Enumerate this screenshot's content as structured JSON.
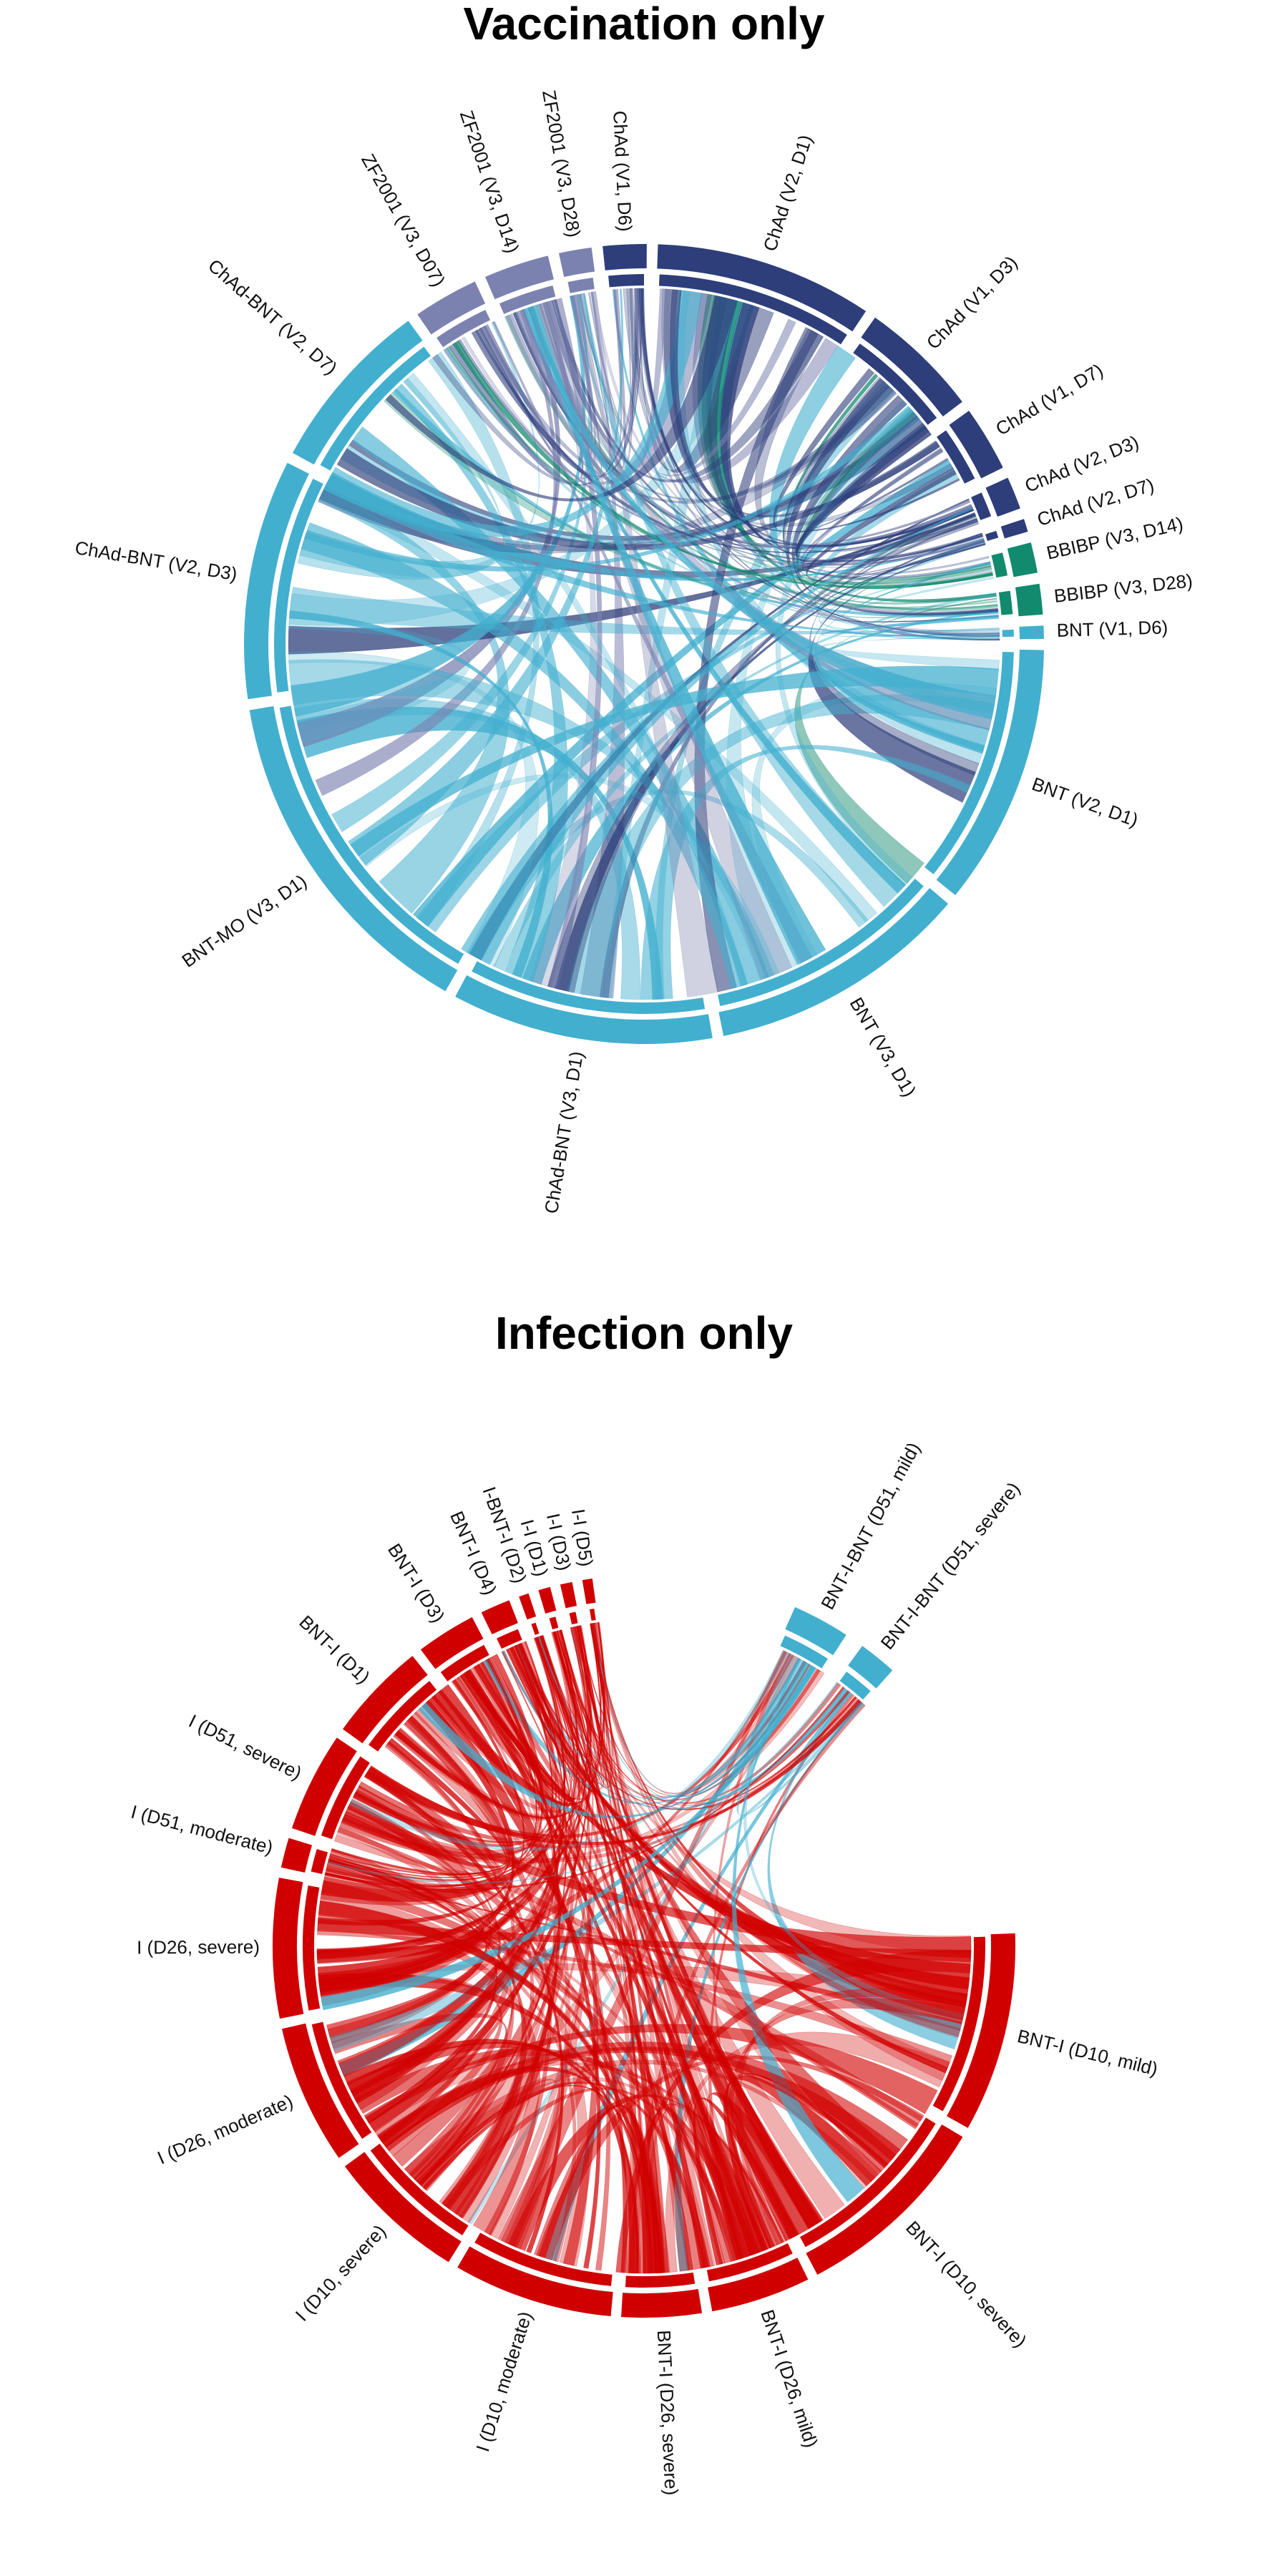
{
  "panels": [
    {
      "id": "vaccination",
      "title": "Vaccination only",
      "sectors": [
        {
          "label": "ChAd (V2, D1)",
          "color": "#2d3e7a",
          "size": 10
        },
        {
          "label": "ChAd (V1, D3)",
          "color": "#2d3e7a",
          "size": 5.5
        },
        {
          "label": "ChAd (V1, D7)",
          "color": "#2d3e7a",
          "size": 3
        },
        {
          "label": "ChAd (V2, D3)",
          "color": "#2d3e7a",
          "size": 1.5
        },
        {
          "label": "ChAd (V2, D7)",
          "color": "#2d3e7a",
          "size": 0.6
        },
        {
          "label": "BBIBP (V3, D14)",
          "color": "#118a6e",
          "size": 1.4
        },
        {
          "label": "BBIBP (V3, D28)",
          "color": "#118a6e",
          "size": 1.4
        },
        {
          "label": "BNT (V1, D6)",
          "color": "#42afcf",
          "size": 0.6
        },
        {
          "label": "BNT (V2, D1)",
          "color": "#42afcf",
          "size": 12
        },
        {
          "label": "BNT (V3, D1)",
          "color": "#42afcf",
          "size": 12
        },
        {
          "label": "ChAd-BNT (V3, D1)",
          "color": "#42afcf",
          "size": 12
        },
        {
          "label": "BNT-MO (V3, D1)",
          "color": "#42afcf",
          "size": 16
        },
        {
          "label": "ChAd-BNT (V2, D3)",
          "color": "#42afcf",
          "size": 11
        },
        {
          "label": "ChAd-BNT (V2, D7)",
          "color": "#42afcf",
          "size": 8
        },
        {
          "label": "ZF2001 (V3, D07)",
          "color": "#7c82b0",
          "size": 3
        },
        {
          "label": "ZF2001 (V3, D14)",
          "color": "#7c82b0",
          "size": 3
        },
        {
          "label": "ZF2001 (V3, D28)",
          "color": "#7c82b0",
          "size": 1.5
        },
        {
          "label": "ChAd (V1, D6)",
          "color": "#2d3e7a",
          "size": 2
        }
      ]
    },
    {
      "id": "infection",
      "title": "Infection only",
      "sectors": [
        {
          "label": "BNT-I-BNT (D51, mild)",
          "color": "#42afcf",
          "size": 1.5
        },
        {
          "label": "BNT-I-BNT (D51, severe)",
          "color": "#42afcf",
          "size": 1
        },
        {
          "label": "BNT-I (D10, mild)",
          "color": "#d10000",
          "size": 10
        },
        {
          "label": "BNT-I (D10, severe)",
          "color": "#d10000",
          "size": 10
        },
        {
          "label": "BNT-I (D26, mild)",
          "color": "#d10000",
          "size": 5
        },
        {
          "label": "BNT-I (D26, severe)",
          "color": "#d10000",
          "size": 4
        },
        {
          "label": "I (D10, moderate)",
          "color": "#d10000",
          "size": 8
        },
        {
          "label": "I (D10, severe)",
          "color": "#d10000",
          "size": 7
        },
        {
          "label": "I (D26, moderate)",
          "color": "#d10000",
          "size": 7
        },
        {
          "label": "I (D26, severe)",
          "color": "#d10000",
          "size": 7
        },
        {
          "label": "I (D51, moderate)",
          "color": "#d10000",
          "size": 1.5
        },
        {
          "label": "I (D51, severe)",
          "color": "#d10000",
          "size": 5
        },
        {
          "label": "BNT-I (D1)",
          "color": "#d10000",
          "size": 5
        },
        {
          "label": "BNT-I (D3)",
          "color": "#d10000",
          "size": 3
        },
        {
          "label": "BNT-I (D4)",
          "color": "#d10000",
          "size": 1.5
        },
        {
          "label": "I-BNT-I (D2)",
          "color": "#d10000",
          "size": 0.5
        },
        {
          "label": "I-I (D1)",
          "color": "#d10000",
          "size": 0.6
        },
        {
          "label": "I-I (D3)",
          "color": "#d10000",
          "size": 0.6
        },
        {
          "label": "I-I (D5)",
          "color": "#d10000",
          "size": 0.5
        }
      ]
    }
  ]
}
